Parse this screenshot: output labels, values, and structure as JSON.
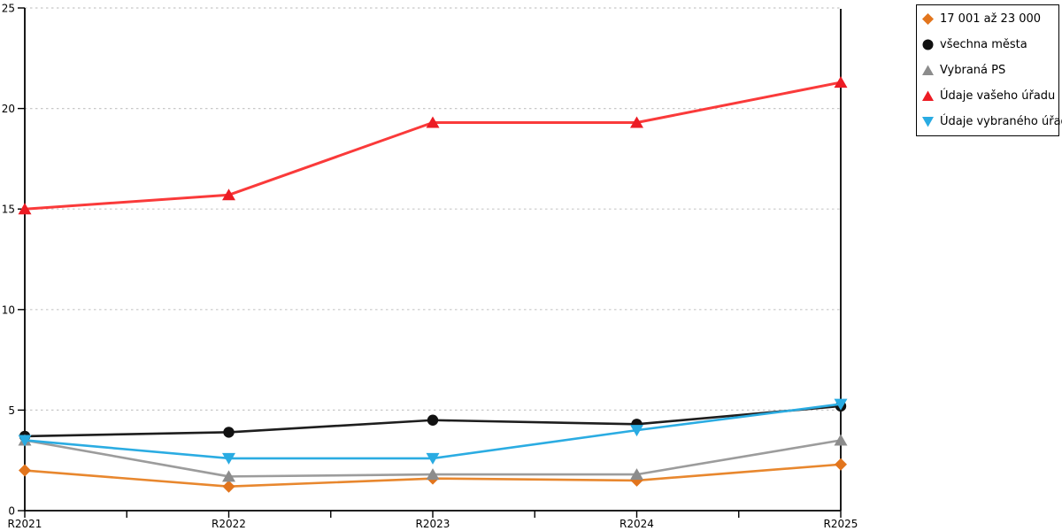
{
  "chart_data": {
    "type": "line",
    "title": "",
    "xlabel": "",
    "ylabel": "",
    "x_categories": [
      "R2021",
      "R2022",
      "R2023",
      "R2024",
      "R2025"
    ],
    "series": [
      {
        "name": "17 001 až 23 000",
        "marker": "diamond",
        "marker_color": "#E2751D",
        "line_color": "#E8872E",
        "line_width": 2.6,
        "values": [
          2.0,
          1.2,
          1.6,
          1.5,
          2.3
        ]
      },
      {
        "name": "všechna města",
        "marker": "circle",
        "marker_color": "#111111",
        "line_color": "#1E1E1E",
        "line_width": 2.6,
        "values": [
          3.7,
          3.9,
          4.5,
          4.3,
          5.2
        ]
      },
      {
        "name": "Vybraná PS",
        "marker": "triangle-up",
        "marker_color": "#8C8C8C",
        "line_color": "#9C9C9C",
        "line_width": 2.6,
        "values": [
          3.5,
          1.7,
          1.8,
          1.8,
          3.5
        ]
      },
      {
        "name": "Údaje vašeho úřadu",
        "marker": "triangle-up",
        "marker_color": "#EC1C24",
        "line_color": "#FA3A3A",
        "line_width": 3.0,
        "values": [
          15.0,
          15.7,
          19.3,
          19.3,
          21.3
        ]
      },
      {
        "name": "Údaje vybraného úřadu",
        "marker": "triangle-down",
        "marker_color": "#29ABE2",
        "line_color": "#2BACE2",
        "line_width": 2.6,
        "values": [
          3.5,
          2.6,
          2.6,
          4.0,
          5.3
        ]
      }
    ],
    "ylim": [
      0,
      25
    ],
    "yticks": [
      0,
      5,
      10,
      15,
      20,
      25
    ],
    "ytick_labels": [
      "0",
      "5",
      "10",
      "15",
      "20",
      "25"
    ],
    "grid": "horizontal-dashed",
    "legend_position": "outside-right-top",
    "colors": {
      "background": "#FFFFFF",
      "grid": "#C8C8C8",
      "axis": "#000000",
      "legend_border": "#000000",
      "tick_label": "#000000"
    }
  }
}
